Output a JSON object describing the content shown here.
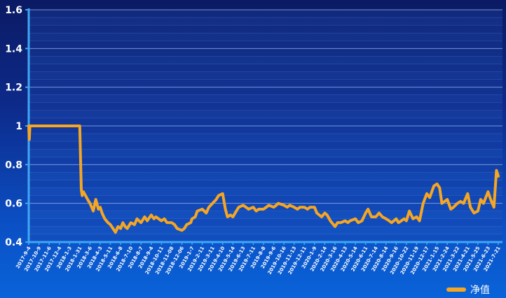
{
  "chart_data": {
    "type": "line",
    "ylim": [
      0.4,
      1.6
    ],
    "y_ticks": [
      "0.4",
      "0.6",
      "0.8",
      "1",
      "1.2",
      "1.4",
      "1.6"
    ],
    "x_tick_labels": [
      "2017-9-4",
      "2017-10-9",
      "2017-11-6",
      "2017-12-4",
      "2018-1-3",
      "2018-1-31",
      "2018-3-6",
      "2018-4-3",
      "2018-5-11",
      "2018-6-8",
      "2018-7-10",
      "2018-8-7",
      "2018-9-4",
      "2018-10-11",
      "2018-11-08",
      "2018-12-06",
      "2019-1-7",
      "2019-2-11",
      "2019-3-11",
      "2019-4-10",
      "2019-5-14",
      "2019-6-13",
      "2019-7-11",
      "2019-8-8",
      "2019-9-6",
      "2019-10-16",
      "2019-11-13",
      "2019-12-11",
      "2020-1-9",
      "2020-2-14",
      "2020-3-16",
      "2020-4-13",
      "2020-5-14",
      "2020-6-11",
      "2020-7-14",
      "2020-8-14",
      "2020-9-16",
      "2020-10-22",
      "2020-11-19",
      "2020-12-17",
      "2021-1-15",
      "2021-2-24",
      "2021-3-22",
      "2021-4-21",
      "2021-5-25",
      "2021-6-23",
      "2021-7-21"
    ],
    "series": [
      {
        "name": "净值",
        "color": "#f5a623",
        "x": [
          "2017-9-4",
          "2017-9-6",
          "2017-9-8",
          "2017-9-12",
          "2017-10-9",
          "2017-11-6",
          "2017-12-4",
          "2018-1-3",
          "2018-1-31",
          "2018-2-5",
          "2018-2-8",
          "2018-2-12",
          "2018-2-26",
          "2018-3-6",
          "2018-3-15",
          "2018-3-22",
          "2018-3-29",
          "2018-4-3",
          "2018-4-10",
          "2018-4-20",
          "2018-5-2",
          "2018-5-11",
          "2018-5-18",
          "2018-5-25",
          "2018-6-1",
          "2018-6-8",
          "2018-6-15",
          "2018-6-22",
          "2018-6-29",
          "2018-7-10",
          "2018-7-20",
          "2018-7-27",
          "2018-8-7",
          "2018-8-17",
          "2018-8-24",
          "2018-9-4",
          "2018-9-14",
          "2018-9-21",
          "2018-10-11",
          "2018-10-19",
          "2018-10-26",
          "2018-11-08",
          "2018-11-16",
          "2018-11-23",
          "2018-12-06",
          "2018-12-14",
          "2018-12-21",
          "2019-1-3",
          "2019-1-7",
          "2019-1-18",
          "2019-1-25",
          "2019-2-11",
          "2019-2-22",
          "2019-3-1",
          "2019-3-11",
          "2019-3-22",
          "2019-3-29",
          "2019-4-10",
          "2019-4-19",
          "2019-4-26",
          "2019-5-6",
          "2019-5-14",
          "2019-5-24",
          "2019-5-31",
          "2019-6-13",
          "2019-6-21",
          "2019-6-28",
          "2019-7-11",
          "2019-7-19",
          "2019-7-26",
          "2019-8-8",
          "2019-8-16",
          "2019-8-23",
          "2019-9-6",
          "2019-9-16",
          "2019-9-24",
          "2019-10-16",
          "2019-10-25",
          "2019-11-1",
          "2019-11-13",
          "2019-11-22",
          "2019-11-29",
          "2019-12-11",
          "2019-12-20",
          "2019-12-27",
          "2020-1-9",
          "2020-1-17",
          "2020-2-3",
          "2020-2-14",
          "2020-2-21",
          "2020-3-2",
          "2020-3-16",
          "2020-3-23",
          "2020-4-1",
          "2020-4-13",
          "2020-4-21",
          "2020-4-28",
          "2020-5-14",
          "2020-5-22",
          "2020-6-1",
          "2020-6-11",
          "2020-6-19",
          "2020-6-30",
          "2020-7-14",
          "2020-7-24",
          "2020-8-3",
          "2020-8-14",
          "2020-8-24",
          "2020-9-1",
          "2020-9-16",
          "2020-9-24",
          "2020-10-14",
          "2020-10-22",
          "2020-10-30",
          "2020-11-9",
          "2020-11-19",
          "2020-11-27",
          "2020-12-7",
          "2020-12-17",
          "2020-12-25",
          "2021-1-6",
          "2021-1-15",
          "2021-1-25",
          "2021-2-3",
          "2021-2-24",
          "2021-3-5",
          "2021-3-12",
          "2021-3-22",
          "2021-3-31",
          "2021-4-9",
          "2021-4-21",
          "2021-4-30",
          "2021-5-12",
          "2021-5-25",
          "2021-6-2",
          "2021-6-10",
          "2021-6-23",
          "2021-6-30",
          "2021-7-9",
          "2021-7-16",
          "2021-7-21"
        ],
        "values": [
          1.0,
          0.93,
          1.0,
          1.0,
          1.0,
          1.0,
          1.0,
          1.0,
          1.0,
          0.67,
          0.64,
          0.66,
          0.62,
          0.6,
          0.56,
          0.62,
          0.57,
          0.58,
          0.55,
          0.52,
          0.5,
          0.49,
          0.47,
          0.45,
          0.48,
          0.47,
          0.5,
          0.48,
          0.47,
          0.5,
          0.49,
          0.52,
          0.5,
          0.53,
          0.51,
          0.54,
          0.52,
          0.53,
          0.51,
          0.52,
          0.5,
          0.5,
          0.49,
          0.47,
          0.46,
          0.47,
          0.49,
          0.5,
          0.52,
          0.53,
          0.56,
          0.57,
          0.55,
          0.58,
          0.6,
          0.62,
          0.64,
          0.65,
          0.57,
          0.53,
          0.54,
          0.53,
          0.56,
          0.58,
          0.59,
          0.58,
          0.57,
          0.58,
          0.56,
          0.57,
          0.57,
          0.58,
          0.59,
          0.58,
          0.59,
          0.6,
          0.59,
          0.58,
          0.59,
          0.58,
          0.57,
          0.58,
          0.58,
          0.57,
          0.58,
          0.58,
          0.55,
          0.53,
          0.55,
          0.54,
          0.51,
          0.48,
          0.5,
          0.5,
          0.51,
          0.5,
          0.51,
          0.52,
          0.5,
          0.51,
          0.55,
          0.57,
          0.53,
          0.53,
          0.55,
          0.53,
          0.52,
          0.51,
          0.5,
          0.52,
          0.5,
          0.52,
          0.51,
          0.56,
          0.52,
          0.53,
          0.51,
          0.6,
          0.65,
          0.63,
          0.69,
          0.7,
          0.68,
          0.6,
          0.62,
          0.57,
          0.58,
          0.6,
          0.61,
          0.6,
          0.65,
          0.58,
          0.55,
          0.56,
          0.62,
          0.6,
          0.66,
          0.62,
          0.58,
          0.77,
          0.74
        ]
      }
    ],
    "legend": {
      "position": "bottom-right"
    },
    "grid": true
  }
}
